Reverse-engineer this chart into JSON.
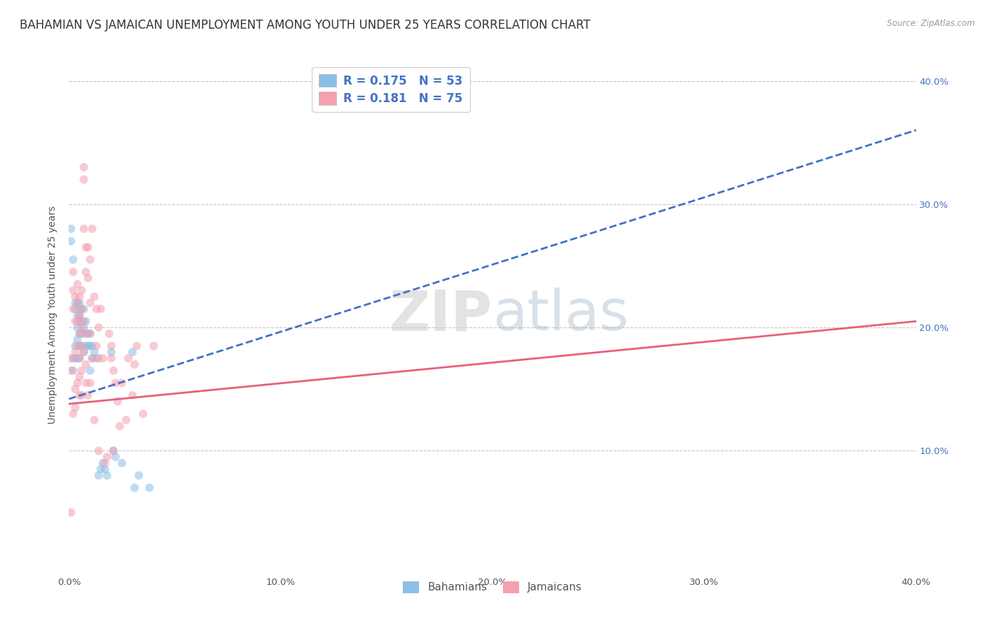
{
  "title": "BAHAMIAN VS JAMAICAN UNEMPLOYMENT AMONG YOUTH UNDER 25 YEARS CORRELATION CHART",
  "source": "Source: ZipAtlas.com",
  "ylabel": "Unemployment Among Youth under 25 years",
  "xlim": [
    0.0,
    0.4
  ],
  "ylim": [
    0.0,
    0.42
  ],
  "xticks": [
    0.0,
    0.1,
    0.2,
    0.3,
    0.4
  ],
  "yticks": [
    0.0,
    0.1,
    0.2,
    0.3,
    0.4
  ],
  "xticklabels": [
    "0.0%",
    "10.0%",
    "20.0%",
    "30.0%",
    "40.0%"
  ],
  "right_yticklabels": [
    "",
    "10.0%",
    "20.0%",
    "30.0%",
    "40.0%"
  ],
  "bahamian_color": "#8BBFE8",
  "jamaican_color": "#F4A0B0",
  "trend_blue_color": "#4472C4",
  "trend_pink_color": "#E8607A",
  "watermark": "ZIPatlas",
  "background_color": "#FFFFFF",
  "grid_color": "#C0C0C0",
  "title_fontsize": 12,
  "axis_label_fontsize": 10,
  "tick_fontsize": 9.5,
  "marker_size": 75,
  "marker_alpha": 0.55,
  "bahamians_x": [
    0.001,
    0.001,
    0.002,
    0.002,
    0.002,
    0.003,
    0.003,
    0.003,
    0.003,
    0.004,
    0.004,
    0.004,
    0.004,
    0.004,
    0.005,
    0.005,
    0.005,
    0.005,
    0.005,
    0.005,
    0.005,
    0.006,
    0.006,
    0.006,
    0.006,
    0.007,
    0.007,
    0.007,
    0.008,
    0.008,
    0.008,
    0.009,
    0.009,
    0.01,
    0.01,
    0.01,
    0.011,
    0.011,
    0.012,
    0.013,
    0.014,
    0.015,
    0.016,
    0.017,
    0.018,
    0.02,
    0.021,
    0.022,
    0.025,
    0.03,
    0.031,
    0.033,
    0.038
  ],
  "bahamians_y": [
    0.28,
    0.27,
    0.255,
    0.175,
    0.165,
    0.22,
    0.215,
    0.185,
    0.175,
    0.22,
    0.21,
    0.2,
    0.19,
    0.175,
    0.22,
    0.215,
    0.21,
    0.205,
    0.195,
    0.185,
    0.175,
    0.215,
    0.205,
    0.195,
    0.185,
    0.215,
    0.2,
    0.18,
    0.205,
    0.195,
    0.185,
    0.195,
    0.185,
    0.195,
    0.185,
    0.165,
    0.185,
    0.175,
    0.18,
    0.175,
    0.08,
    0.085,
    0.09,
    0.085,
    0.08,
    0.18,
    0.1,
    0.095,
    0.09,
    0.18,
    0.07,
    0.08,
    0.07
  ],
  "jamaicans_x": [
    0.001,
    0.001,
    0.001,
    0.002,
    0.002,
    0.002,
    0.002,
    0.003,
    0.003,
    0.003,
    0.003,
    0.003,
    0.004,
    0.004,
    0.004,
    0.004,
    0.004,
    0.005,
    0.005,
    0.005,
    0.005,
    0.005,
    0.005,
    0.006,
    0.006,
    0.006,
    0.006,
    0.006,
    0.006,
    0.007,
    0.007,
    0.007,
    0.007,
    0.007,
    0.007,
    0.008,
    0.008,
    0.008,
    0.008,
    0.009,
    0.009,
    0.009,
    0.01,
    0.01,
    0.01,
    0.01,
    0.011,
    0.011,
    0.012,
    0.012,
    0.013,
    0.013,
    0.014,
    0.014,
    0.014,
    0.015,
    0.016,
    0.017,
    0.018,
    0.019,
    0.02,
    0.02,
    0.021,
    0.021,
    0.022,
    0.023,
    0.024,
    0.025,
    0.027,
    0.028,
    0.03,
    0.031,
    0.032,
    0.035,
    0.04
  ],
  "jamaicans_y": [
    0.175,
    0.165,
    0.05,
    0.245,
    0.23,
    0.215,
    0.13,
    0.225,
    0.205,
    0.18,
    0.15,
    0.135,
    0.235,
    0.22,
    0.205,
    0.185,
    0.155,
    0.225,
    0.21,
    0.195,
    0.175,
    0.16,
    0.145,
    0.23,
    0.215,
    0.2,
    0.185,
    0.165,
    0.145,
    0.33,
    0.32,
    0.28,
    0.205,
    0.195,
    0.18,
    0.265,
    0.245,
    0.17,
    0.155,
    0.265,
    0.24,
    0.145,
    0.255,
    0.22,
    0.195,
    0.155,
    0.28,
    0.175,
    0.225,
    0.125,
    0.215,
    0.185,
    0.2,
    0.175,
    0.1,
    0.215,
    0.175,
    0.09,
    0.095,
    0.195,
    0.185,
    0.175,
    0.165,
    0.1,
    0.155,
    0.14,
    0.12,
    0.155,
    0.125,
    0.175,
    0.145,
    0.17,
    0.185,
    0.13,
    0.185
  ]
}
